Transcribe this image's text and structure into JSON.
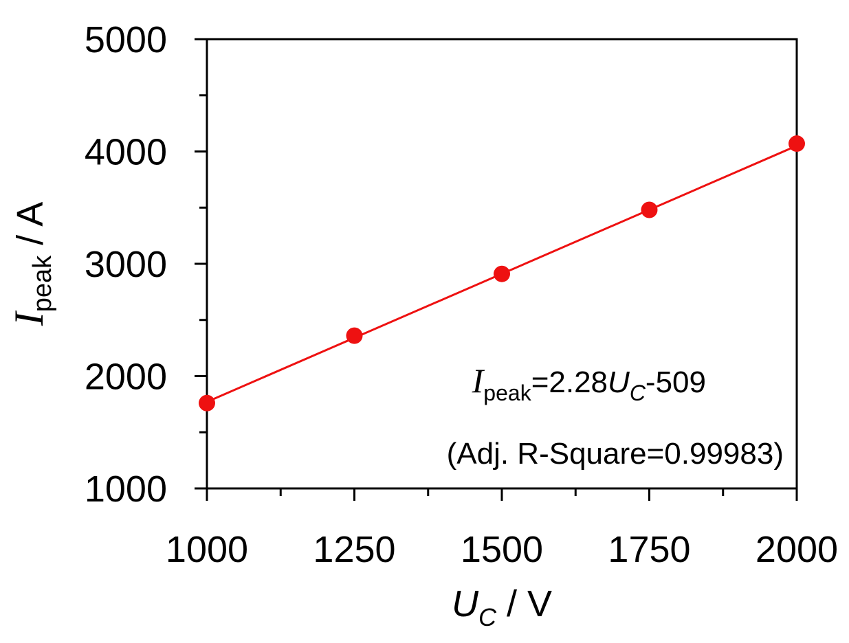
{
  "chart_data": {
    "type": "scatter",
    "xlabel": {
      "symbol": "U",
      "subscript": "C",
      "unit": " / V"
    },
    "ylabel": {
      "symbol": "I",
      "subscript": "peak",
      "unit": " / A"
    },
    "xlim": [
      1000,
      2000
    ],
    "ylim": [
      1000,
      5000
    ],
    "x_ticks": [
      1000,
      1250,
      1500,
      1750,
      2000
    ],
    "x_minor_ticks": [
      1125,
      1375,
      1625,
      1875
    ],
    "y_ticks": [
      1000,
      2000,
      3000,
      4000,
      5000
    ],
    "y_minor_ticks": [
      1500,
      2500,
      3500,
      4500
    ],
    "grid": false,
    "series": [
      {
        "x": [
          1000,
          1250,
          1500,
          1750,
          2000
        ],
        "y": [
          1760,
          2360,
          2910,
          3480,
          4070
        ],
        "color": "#ee1111"
      }
    ],
    "fit_line": {
      "x": [
        1000,
        2000
      ],
      "y": [
        1771,
        4051
      ],
      "color": "#ee1111"
    },
    "annotation": {
      "lhs_symbol": "I",
      "lhs_subscript": "peak",
      "equals_coef": "=2.28",
      "var_symbol": "U",
      "var_subscript": "C",
      "intercept": "-509",
      "r_square": "(Adj. R-Square=0.99983)"
    }
  }
}
